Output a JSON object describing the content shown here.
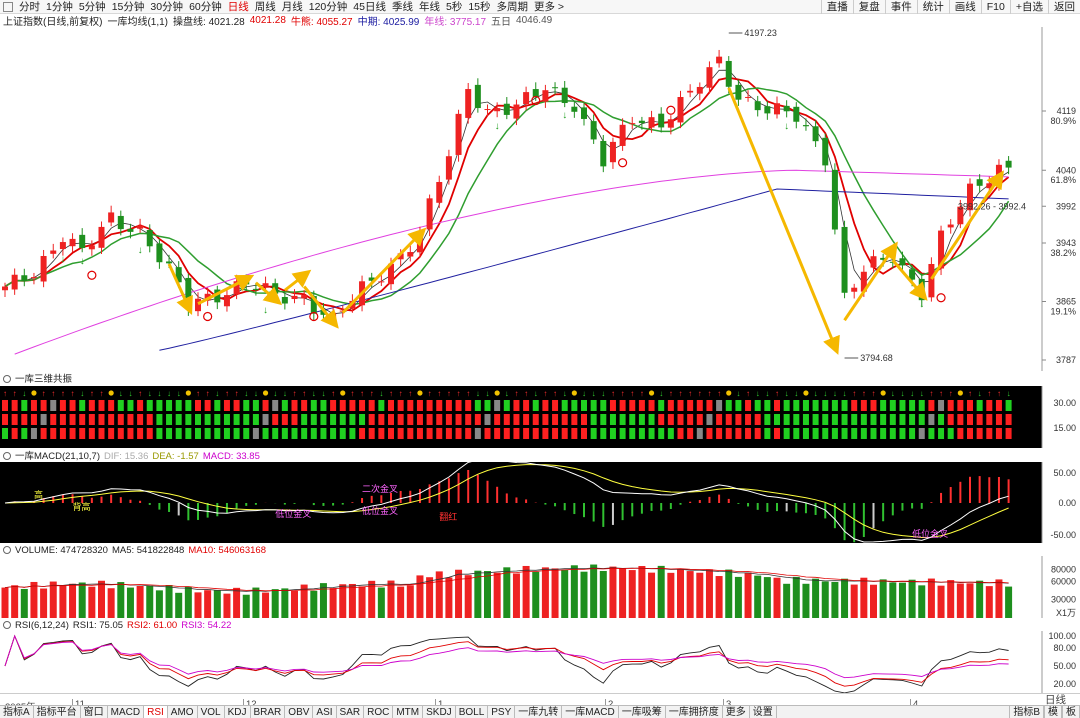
{
  "toolbar": {
    "periods": [
      "分时",
      "1分钟",
      "5分钟",
      "15分钟",
      "30分钟",
      "60分钟",
      "日线",
      "周线",
      "月线",
      "120分钟",
      "45日线",
      "季线",
      "年线",
      "5秒",
      "15秒",
      "多周期",
      "更多 >"
    ],
    "active_period": "日线",
    "right_buttons": [
      "直播",
      "复盘",
      "事件",
      "统计",
      "画线",
      "F10",
      "+自选",
      "返回"
    ]
  },
  "info": {
    "index_name": "上证指数(日线,前复权)",
    "ma_name": "一库均线(1,1)",
    "line1": "操盘线: 4021.28",
    "line2": "4021.28",
    "line3": "牛熊: 4055.27",
    "line4": "中期: 4025.99",
    "line5": "年线: 3775.17",
    "line6": "五日",
    "line7": "4046.49"
  },
  "main_chart": {
    "price_labels": [
      "4119",
      "80.9%",
      "4040",
      "61.8%",
      "3992",
      "3943",
      "38.2%",
      "3865",
      "19.1%",
      "3787"
    ],
    "annot_high": "4197.23",
    "annot_low": "3794.68",
    "annot_right": "3992.26 - 3992.4"
  },
  "panel2": {
    "title": "一库三维共振",
    "axis": [
      "30.00",
      "15.00"
    ]
  },
  "panel3": {
    "title": "一库MACD(21,10,7)",
    "dif": "DIF: 15.36",
    "dea": "DEA: -1.57",
    "macd": "MACD: 33.85",
    "axis": [
      "50.00",
      "0.00",
      "-50.00"
    ],
    "labels": [
      "高",
      "背高",
      "低位金叉",
      "低位金叉",
      "二次金叉",
      "翻红",
      "低位金叉"
    ]
  },
  "panel4": {
    "title": "VOLUME: 474728320",
    "ma5": "MA5: 541822848",
    "ma10": "MA10: 546063168",
    "axis": [
      "80000",
      "60000",
      "30000",
      "X1万"
    ]
  },
  "panel5": {
    "title": "RSI(6,12,24)",
    "rsi1": "RSI1: 75.05",
    "rsi2": "RSI2: 61.00",
    "rsi3": "RSI3: 54.22",
    "axis": [
      "100.00",
      "80.00",
      "50.00",
      "20.00"
    ]
  },
  "date_axis": {
    "labels": [
      "2025年",
      "11",
      "12",
      "1",
      "2",
      "3",
      "4"
    ],
    "right": "日线"
  },
  "bottom_tabs": {
    "items": [
      "指标A",
      "指标平台",
      "窗口",
      "MACD",
      "RSI",
      "AMO",
      "VOL",
      "KDJ",
      "BRAR",
      "OBV",
      "ASI",
      "SAR",
      "ROC",
      "MTM",
      "SKDJ",
      "BOLL",
      "PSY",
      "一库九转",
      "一库MACD",
      "一库吸筹",
      "一库拥挤度",
      "更多",
      "设置"
    ],
    "active": "RSI",
    "right": [
      "指标B",
      "模",
      "板"
    ]
  },
  "colors": {
    "up": "#ee2222",
    "down": "#1e8f1e",
    "ma_red": "#e00000",
    "ma_green": "#2f9e2f",
    "ma_magenta": "#e040e0",
    "ma_blue": "#2020a0",
    "arrow": "#f5b800"
  }
}
